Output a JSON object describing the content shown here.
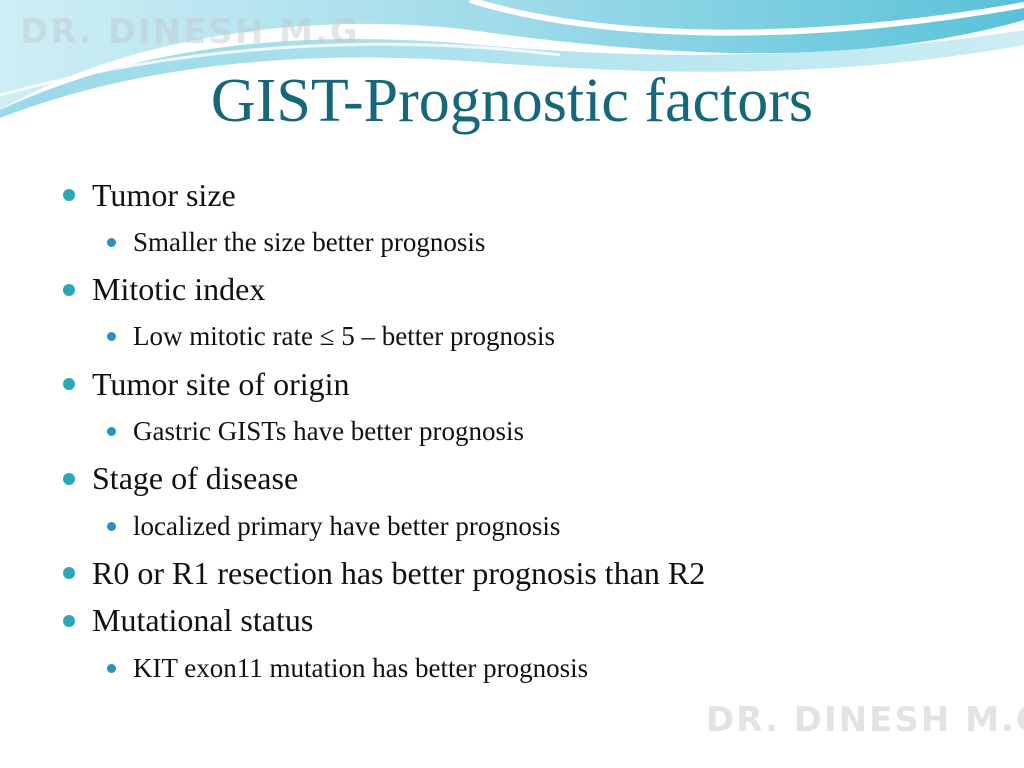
{
  "watermarks": [
    "DR. DINESH M.G",
    "DR. DINESH M.G"
  ],
  "title": "GIST-Prognostic factors",
  "bullets": [
    {
      "text": "Tumor size",
      "sub": [
        "Smaller the size better prognosis"
      ]
    },
    {
      "text": "Mitotic index",
      "sub": [
        "Low mitotic rate ≤ 5 – better prognosis"
      ]
    },
    {
      "text": "Tumor site of origin",
      "sub": [
        "Gastric GISTs have better prognosis"
      ]
    },
    {
      "text": "Stage of disease",
      "sub": [
        "localized primary have better prognosis"
      ]
    },
    {
      "text": "R0 or R1 resection has better prognosis than R2"
    },
    {
      "text": "Mutational status",
      "sub": [
        "KIT exon11 mutation has better prognosis"
      ]
    }
  ]
}
